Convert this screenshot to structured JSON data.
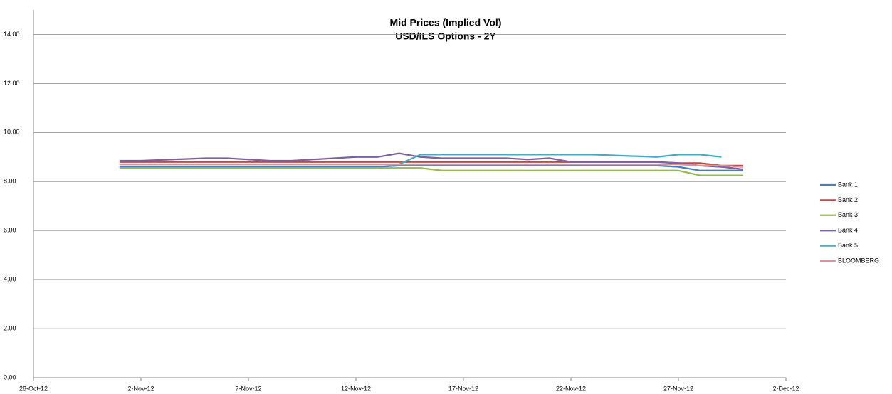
{
  "chart_data": {
    "type": "line",
    "title": "Mid Prices (Implied Vol)",
    "subtitle": "USD/ILS Options - 2Y",
    "x": [
      "1-Nov-12",
      "2-Nov-12",
      "5-Nov-12",
      "6-Nov-12",
      "7-Nov-12",
      "8-Nov-12",
      "9-Nov-12",
      "12-Nov-12",
      "13-Nov-12",
      "14-Nov-12",
      "15-Nov-12",
      "16-Nov-12",
      "19-Nov-12",
      "20-Nov-12",
      "21-Nov-12",
      "22-Nov-12",
      "23-Nov-12",
      "26-Nov-12",
      "27-Nov-12",
      "28-Nov-12",
      "29-Nov-12",
      "30-Nov-12"
    ],
    "series": [
      {
        "name": "Bank 1",
        "color": "#4a7ebb",
        "values": [
          8.6,
          8.6,
          8.6,
          8.6,
          8.6,
          8.6,
          8.6,
          8.6,
          8.6,
          8.65,
          8.65,
          8.65,
          8.65,
          8.65,
          8.65,
          8.65,
          8.65,
          8.65,
          8.6,
          8.45,
          8.45,
          8.45
        ]
      },
      {
        "name": "Bank 2",
        "color": "#be4b48",
        "values": [
          8.8,
          8.8,
          8.8,
          8.8,
          8.8,
          8.8,
          8.8,
          8.8,
          8.8,
          8.8,
          8.8,
          8.8,
          8.8,
          8.8,
          8.8,
          8.8,
          8.8,
          8.8,
          8.75,
          8.75,
          8.65,
          8.65
        ]
      },
      {
        "name": "Bank 3",
        "color": "#98b954",
        "values": [
          8.55,
          8.55,
          8.55,
          8.55,
          8.55,
          8.55,
          8.55,
          8.55,
          8.55,
          8.55,
          8.55,
          8.45,
          8.45,
          8.45,
          8.45,
          8.45,
          8.45,
          8.45,
          8.45,
          8.25,
          8.25,
          8.25
        ]
      },
      {
        "name": "Bank 4",
        "color": "#7d60a0",
        "values": [
          8.85,
          8.85,
          8.95,
          8.95,
          8.9,
          8.85,
          8.85,
          9.0,
          9.0,
          9.15,
          9.0,
          8.95,
          8.95,
          8.9,
          8.95,
          8.8,
          8.8,
          8.8,
          8.75,
          8.65,
          8.6,
          8.5
        ]
      },
      {
        "name": "Bank 5",
        "color": "#46aac5",
        "values": [
          8.7,
          8.7,
          8.7,
          8.7,
          8.7,
          8.7,
          8.7,
          8.7,
          8.7,
          8.7,
          9.1,
          9.1,
          9.1,
          9.1,
          9.1,
          9.1,
          9.1,
          9.0,
          9.1,
          9.1,
          9.0,
          null
        ]
      },
      {
        "name": "BLOOMBERG",
        "color": "#d99694",
        "values": [
          8.7,
          8.7,
          8.7,
          8.7,
          8.7,
          8.7,
          8.7,
          8.7,
          8.7,
          8.7,
          8.7,
          8.7,
          8.7,
          8.7,
          8.7,
          8.7,
          8.7,
          8.7,
          8.7,
          8.65,
          8.65,
          8.6
        ]
      }
    ],
    "xlim": [
      "28-Oct-12",
      "2-Dec-12"
    ],
    "xticks": [
      "28-Oct-12",
      "2-Nov-12",
      "7-Nov-12",
      "12-Nov-12",
      "17-Nov-12",
      "22-Nov-12",
      "27-Nov-12",
      "2-Dec-12"
    ],
    "ylim": [
      0,
      15
    ],
    "yticks": [
      {
        "value": 0,
        "label": "0.00"
      },
      {
        "value": 2,
        "label": "2.00"
      },
      {
        "value": 4,
        "label": "4.00"
      },
      {
        "value": 6,
        "label": "6.00"
      },
      {
        "value": 8,
        "label": "8.00"
      },
      {
        "value": 10,
        "label": "10.00"
      },
      {
        "value": 12,
        "label": "12.00"
      },
      {
        "value": 14,
        "label": "14.00"
      }
    ],
    "grid": true,
    "legend": "right"
  }
}
